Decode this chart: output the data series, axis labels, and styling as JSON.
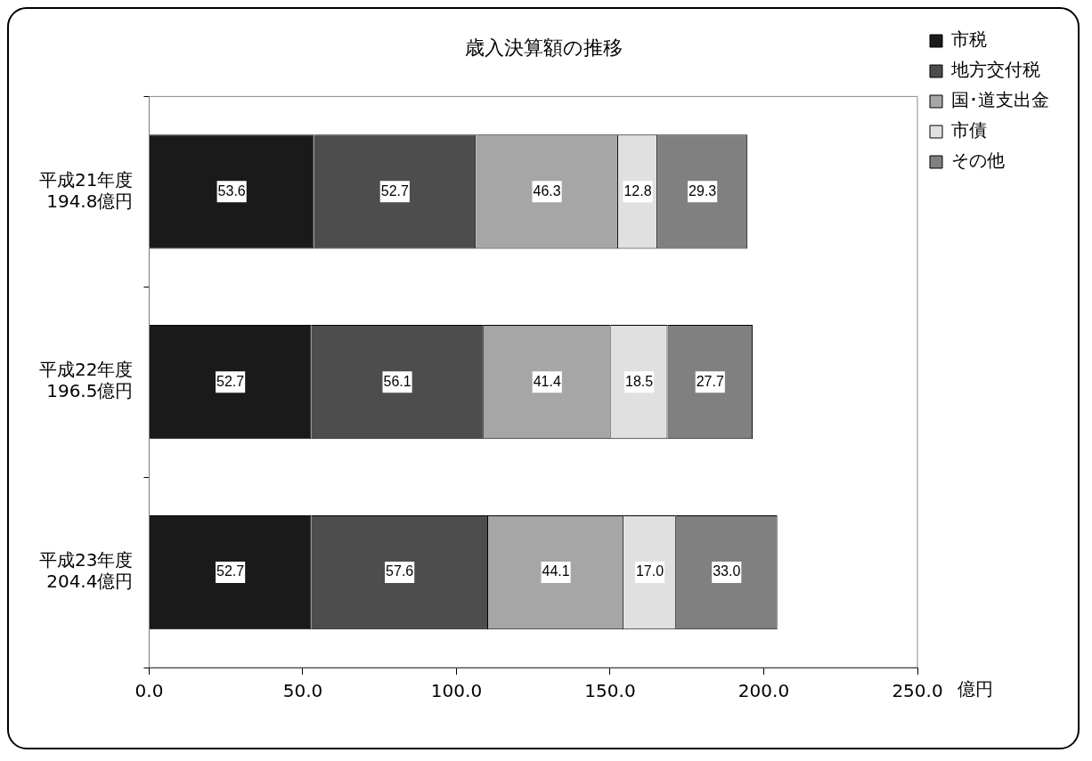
{
  "chart_data": {
    "type": "bar",
    "orientation": "horizontal",
    "stacked": true,
    "title": "歳入決算額の推移",
    "xlabel": "億円",
    "categories": [
      "平成21年度\n194.8億円",
      "平成22年度\n196.5億円",
      "平成23年度\n204.4億円"
    ],
    "series": [
      {
        "name": "市税",
        "color": "#1a1a1a",
        "values": [
          53.6,
          52.7,
          52.7
        ],
        "value_labels": [
          "53.6",
          "52.7",
          "52.7"
        ]
      },
      {
        "name": "地方交付税",
        "color": "#4d4d4d",
        "values": [
          52.7,
          56.1,
          57.6
        ],
        "value_labels": [
          "52.7",
          "56.1",
          "57.6"
        ]
      },
      {
        "name": "国･道支出金",
        "color": "#a6a6a6",
        "values": [
          46.3,
          41.4,
          44.1
        ],
        "value_labels": [
          "46.3",
          "41.4",
          "44.1"
        ]
      },
      {
        "name": "市債",
        "color": "#e0e0e0",
        "values": [
          12.8,
          18.5,
          17.0
        ],
        "value_labels": [
          "12.8",
          "18.5",
          "17.0"
        ]
      },
      {
        "name": "その他",
        "color": "#808080",
        "values": [
          29.3,
          27.7,
          33.0
        ],
        "value_labels": [
          "29.3",
          "27.7",
          "33.0"
        ]
      }
    ],
    "xlim": [
      0,
      250
    ],
    "xticks": [
      {
        "value": 0,
        "label": "0.0"
      },
      {
        "value": 50,
        "label": "50.0"
      },
      {
        "value": 100,
        "label": "100.0"
      },
      {
        "value": 150,
        "label": "150.0"
      },
      {
        "value": 200,
        "label": "200.0"
      },
      {
        "value": 250,
        "label": "250.0"
      }
    ],
    "grid": false,
    "legend": "top right"
  }
}
